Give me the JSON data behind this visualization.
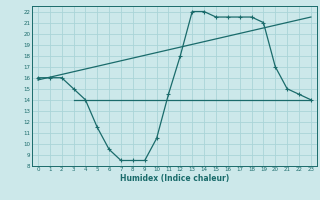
{
  "title": "",
  "xlabel": "Humidex (Indice chaleur)",
  "bg_color": "#cce8ea",
  "grid_color": "#aad4d8",
  "line_color": "#1a6b6b",
  "curve1_x": [
    0,
    1,
    2,
    3,
    4,
    5,
    6,
    7,
    8,
    9,
    10,
    11,
    12,
    13,
    14,
    15,
    16,
    17,
    18,
    19,
    20,
    21,
    22,
    23
  ],
  "curve1_y": [
    16,
    16,
    16,
    15,
    14,
    11.5,
    9.5,
    8.5,
    8.5,
    8.5,
    10.5,
    14.5,
    18,
    22,
    22,
    21.5,
    21.5,
    21.5,
    21.5,
    21,
    17,
    15,
    14.5,
    14
  ],
  "curve2_x": [
    0,
    23
  ],
  "curve2_y": [
    15.8,
    21.5
  ],
  "curve3_x": [
    3,
    23
  ],
  "curve3_y": [
    14,
    14
  ],
  "xlim": [
    -0.5,
    23.5
  ],
  "ylim": [
    8,
    22.5
  ],
  "yticks": [
    8,
    9,
    10,
    11,
    12,
    13,
    14,
    15,
    16,
    17,
    18,
    19,
    20,
    21,
    22
  ],
  "xticks": [
    0,
    1,
    2,
    3,
    4,
    5,
    6,
    7,
    8,
    9,
    10,
    11,
    12,
    13,
    14,
    15,
    16,
    17,
    18,
    19,
    20,
    21,
    22,
    23
  ]
}
